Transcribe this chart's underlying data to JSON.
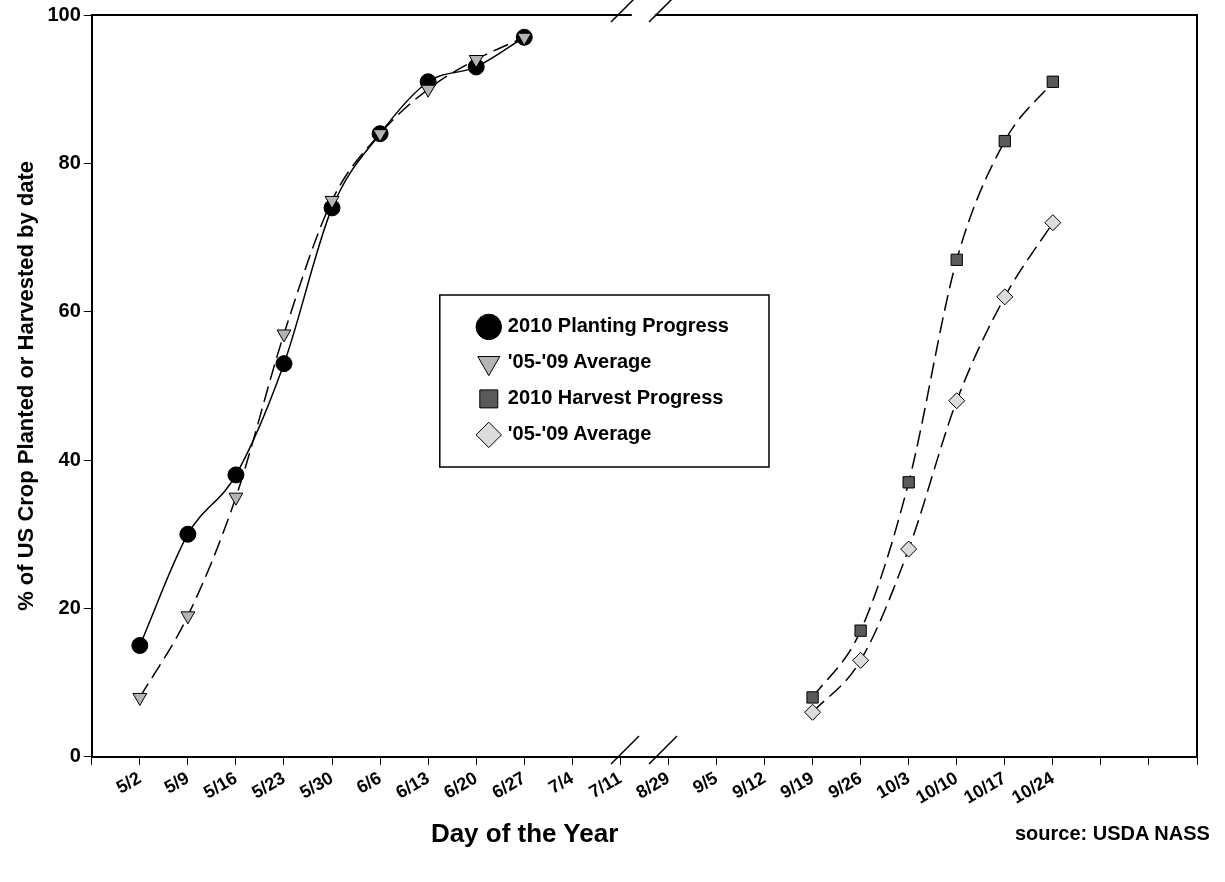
{
  "chart_data": {
    "type": "line",
    "xlabel": "Day of the Year",
    "ylabel": "% of US Crop Planted or Harvested by date",
    "annotations": [
      "source: USDA NASS"
    ],
    "legend": "center",
    "grid": false,
    "ylim": [
      0,
      100
    ],
    "yticks": [
      0,
      20,
      40,
      60,
      80,
      100
    ],
    "categories": [
      null,
      "5/2",
      "5/9",
      "5/16",
      "5/23",
      "5/30",
      "6/6",
      "6/13",
      "6/20",
      "6/27",
      "7/4",
      "7/11",
      "8/29",
      "9/5",
      "9/12",
      "9/19",
      "9/26",
      "10/3",
      "10/10",
      "10/17",
      "10/24",
      null,
      null,
      null
    ],
    "series": [
      {
        "name": "2010 Planting Progress",
        "color": "#000000",
        "marker": "circle",
        "line_style": "solid",
        "values": [
          null,
          15,
          30,
          38,
          53,
          74,
          84,
          91,
          93,
          97,
          null,
          null,
          null,
          null,
          null,
          null,
          null,
          null,
          null,
          null,
          null,
          null,
          null,
          null
        ]
      },
      {
        "name": "'05-'09 Average",
        "color": "#b4b4b4",
        "marker": "triangle",
        "line_style": "dashed",
        "values": [
          null,
          8,
          19,
          35,
          57,
          75,
          84,
          90,
          94,
          97,
          null,
          null,
          null,
          null,
          null,
          null,
          null,
          null,
          null,
          null,
          null,
          null,
          null,
          null
        ]
      },
      {
        "name": "2010 Harvest Progress",
        "color": "#5a5a5a",
        "marker": "square",
        "line_style": "dashed",
        "values": [
          null,
          null,
          null,
          null,
          null,
          null,
          null,
          null,
          null,
          null,
          null,
          null,
          null,
          null,
          null,
          8,
          17,
          37,
          67,
          83,
          91,
          null,
          null,
          null
        ]
      },
      {
        "name": "'05-'09 Average",
        "color": "#dcdcdc",
        "marker": "diamond",
        "line_style": "dashed",
        "values": [
          null,
          null,
          null,
          null,
          null,
          null,
          null,
          null,
          null,
          null,
          null,
          null,
          null,
          null,
          null,
          6,
          13,
          28,
          48,
          62,
          72,
          null,
          null,
          null
        ]
      }
    ]
  }
}
